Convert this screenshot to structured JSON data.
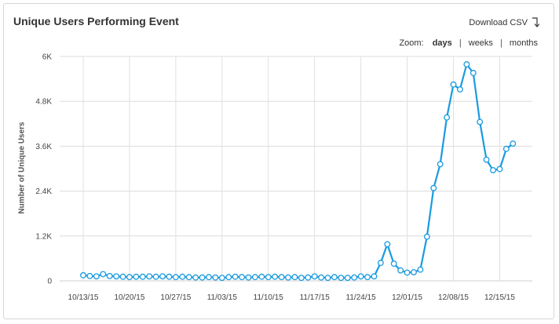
{
  "panel": {
    "title": "Unique Users Performing Event",
    "download_label": "Download CSV",
    "download_icon": "download-arrow-icon",
    "zoom": {
      "label": "Zoom:",
      "options": [
        "days",
        "weeks",
        "months"
      ],
      "selected": "days"
    }
  },
  "chart_data": {
    "type": "line",
    "xlabel": "",
    "ylabel": "Number of Unique Users",
    "ylim": [
      0,
      6000
    ],
    "y_ticks": [
      0,
      1200,
      2400,
      3600,
      4800,
      6000
    ],
    "y_tick_labels": [
      "0",
      "1.2K",
      "2.4K",
      "3.6K",
      "4.8K",
      "6K"
    ],
    "x_tick_labels": [
      "10/13/15",
      "10/20/15",
      "10/27/15",
      "11/03/15",
      "11/10/15",
      "11/17/15",
      "11/24/15",
      "12/01/15",
      "12/08/15",
      "12/15/15"
    ],
    "grid": true,
    "line_color": "#1a9be0",
    "series": [
      {
        "x": [
          "10/13/15",
          "10/14/15",
          "10/15/15",
          "10/16/15",
          "10/17/15",
          "10/18/15",
          "10/19/15",
          "10/20/15",
          "10/21/15",
          "10/22/15",
          "10/23/15",
          "10/24/15",
          "10/25/15",
          "10/26/15",
          "10/27/15",
          "10/28/15",
          "10/29/15",
          "10/30/15",
          "10/31/15",
          "11/01/15",
          "11/02/15",
          "11/03/15",
          "11/04/15",
          "11/05/15",
          "11/06/15",
          "11/07/15",
          "11/08/15",
          "11/09/15",
          "11/10/15",
          "11/11/15",
          "11/12/15",
          "11/13/15",
          "11/14/15",
          "11/15/15",
          "11/16/15",
          "11/17/15",
          "11/18/15",
          "11/19/15",
          "11/20/15",
          "11/21/15",
          "11/22/15",
          "11/23/15",
          "11/24/15",
          "11/25/15",
          "11/26/15",
          "11/27/15",
          "11/28/15",
          "11/29/15",
          "11/30/15",
          "12/01/15",
          "12/02/15",
          "12/03/15",
          "12/04/15",
          "12/05/15",
          "12/06/15",
          "12/07/15",
          "12/08/15",
          "12/09/15",
          "12/10/15",
          "12/11/15",
          "12/12/15",
          "12/13/15",
          "12/14/15",
          "12/15/15",
          "12/16/15",
          "12/17/15"
        ],
        "values": [
          150,
          130,
          120,
          180,
          130,
          120,
          110,
          100,
          110,
          110,
          120,
          110,
          120,
          110,
          100,
          110,
          100,
          90,
          90,
          100,
          90,
          80,
          100,
          110,
          100,
          90,
          100,
          110,
          100,
          110,
          100,
          90,
          100,
          80,
          90,
          120,
          90,
          80,
          100,
          80,
          80,
          90,
          120,
          100,
          120,
          480,
          980,
          460,
          280,
          220,
          230,
          300,
          1180,
          2480,
          3120,
          4370,
          5250,
          5120,
          5790,
          5560,
          4250,
          3240,
          2960,
          2990,
          3530,
          3670
        ]
      }
    ]
  }
}
